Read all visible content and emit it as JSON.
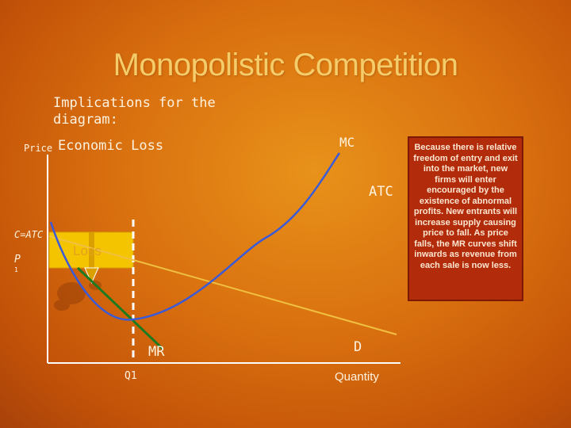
{
  "title": "Monopolistic Competition",
  "subtitle": "Implications for the diagram:",
  "labels": {
    "price": "Price",
    "economic_loss": "Economic Loss",
    "mc": "MC",
    "atc": "ATC",
    "c_atc": "C=ATC",
    "p": "P",
    "p_subscript": "1",
    "loss": "Loss",
    "mr": "MR",
    "d": "D",
    "q1": "Q1",
    "quantity": "Quantity"
  },
  "note": "Because there is relative freedom of entry and exit into the market, new firms will enter encouraged by the existence of abnormal profits. New entrants will increase supply causing price to fall. As price falls, the MR curves shift inwards as revenue from each sale is now less.",
  "colors": {
    "title": "#f5cc6a",
    "mc_curve": "#3a5ad8",
    "atc_curve": "#3a5ad8",
    "demand_curve": "#f0c040",
    "mr_curve": "#1e7a1e",
    "loss_box": "#f5c400",
    "note_box": "#b22c0c"
  }
}
